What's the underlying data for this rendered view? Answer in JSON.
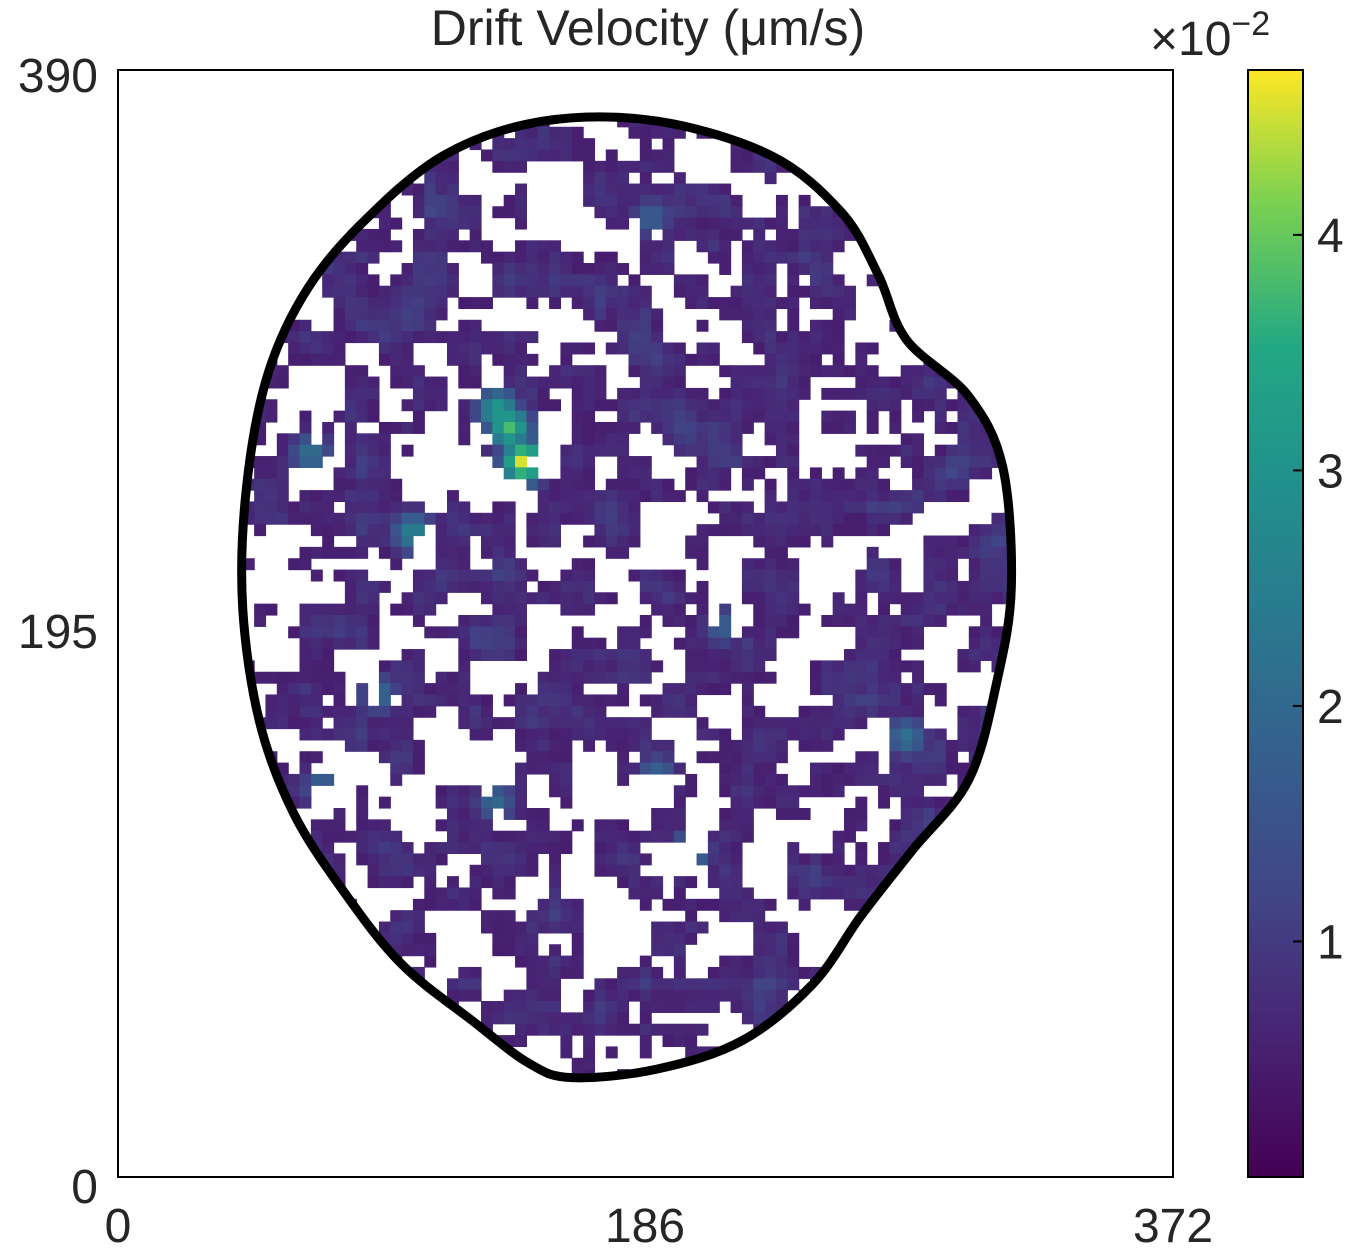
{
  "chart_data": {
    "type": "heatmap",
    "title": "Drift Velocity (μm/s)",
    "xlabel": "",
    "ylabel": "",
    "xlim": [
      0,
      372
    ],
    "ylim": [
      0,
      390
    ],
    "x_ticks": [
      "0",
      "186",
      "372"
    ],
    "y_ticks": [
      "0",
      "195",
      "390"
    ],
    "grid": false,
    "colormap": "viridis",
    "colorbar": {
      "range": [
        0.0,
        4.7
      ],
      "multiplier_label": "×10−2",
      "ticks": [
        1,
        2,
        3,
        4
      ],
      "tick_labels": [
        "1",
        "2",
        "3",
        "4"
      ]
    },
    "cell_boundary": [
      [
        160,
        355
      ],
      [
        190,
        352
      ],
      [
        220,
        342
      ],
      [
        245,
        322
      ],
      [
        262,
        298
      ],
      [
        280,
        275
      ],
      [
        300,
        250
      ],
      [
        310,
        215
      ],
      [
        315,
        182
      ],
      [
        312,
        140
      ],
      [
        300,
        115
      ],
      [
        278,
        95
      ],
      [
        268,
        72
      ],
      [
        255,
        50
      ],
      [
        230,
        30
      ],
      [
        190,
        18
      ],
      [
        150,
        18
      ],
      [
        115,
        30
      ],
      [
        85,
        55
      ],
      [
        65,
        80
      ],
      [
        52,
        110
      ],
      [
        45,
        150
      ],
      [
        44,
        190
      ],
      [
        50,
        230
      ],
      [
        62,
        262
      ],
      [
        80,
        290
      ],
      [
        100,
        315
      ],
      [
        125,
        335
      ],
      [
        145,
        350
      ]
    ],
    "hotspots": [
      {
        "x": 143,
        "y": 138,
        "value": 4.6
      },
      {
        "x": 138,
        "y": 126,
        "value": 3.8
      },
      {
        "x": 134,
        "y": 120,
        "value": 3.2
      },
      {
        "x": 202,
        "y": 275,
        "value": 2.4
      },
      {
        "x": 104,
        "y": 163,
        "value": 2.6
      },
      {
        "x": 68,
        "y": 135,
        "value": 2.2
      },
      {
        "x": 72,
        "y": 253,
        "value": 2.0
      },
      {
        "x": 92,
        "y": 220,
        "value": 2.0
      },
      {
        "x": 133,
        "y": 258,
        "value": 2.0
      },
      {
        "x": 278,
        "y": 235,
        "value": 2.2
      },
      {
        "x": 213,
        "y": 196,
        "value": 1.8
      },
      {
        "x": 188,
        "y": 52,
        "value": 1.8
      },
      {
        "x": 280,
        "y": 95,
        "value": 1.7
      },
      {
        "x": 190,
        "y": 248,
        "value": 1.9
      }
    ],
    "background_level": 0.5
  },
  "colors": {
    "boundary": "#000000",
    "text": "#262626",
    "axes": "#000000"
  }
}
